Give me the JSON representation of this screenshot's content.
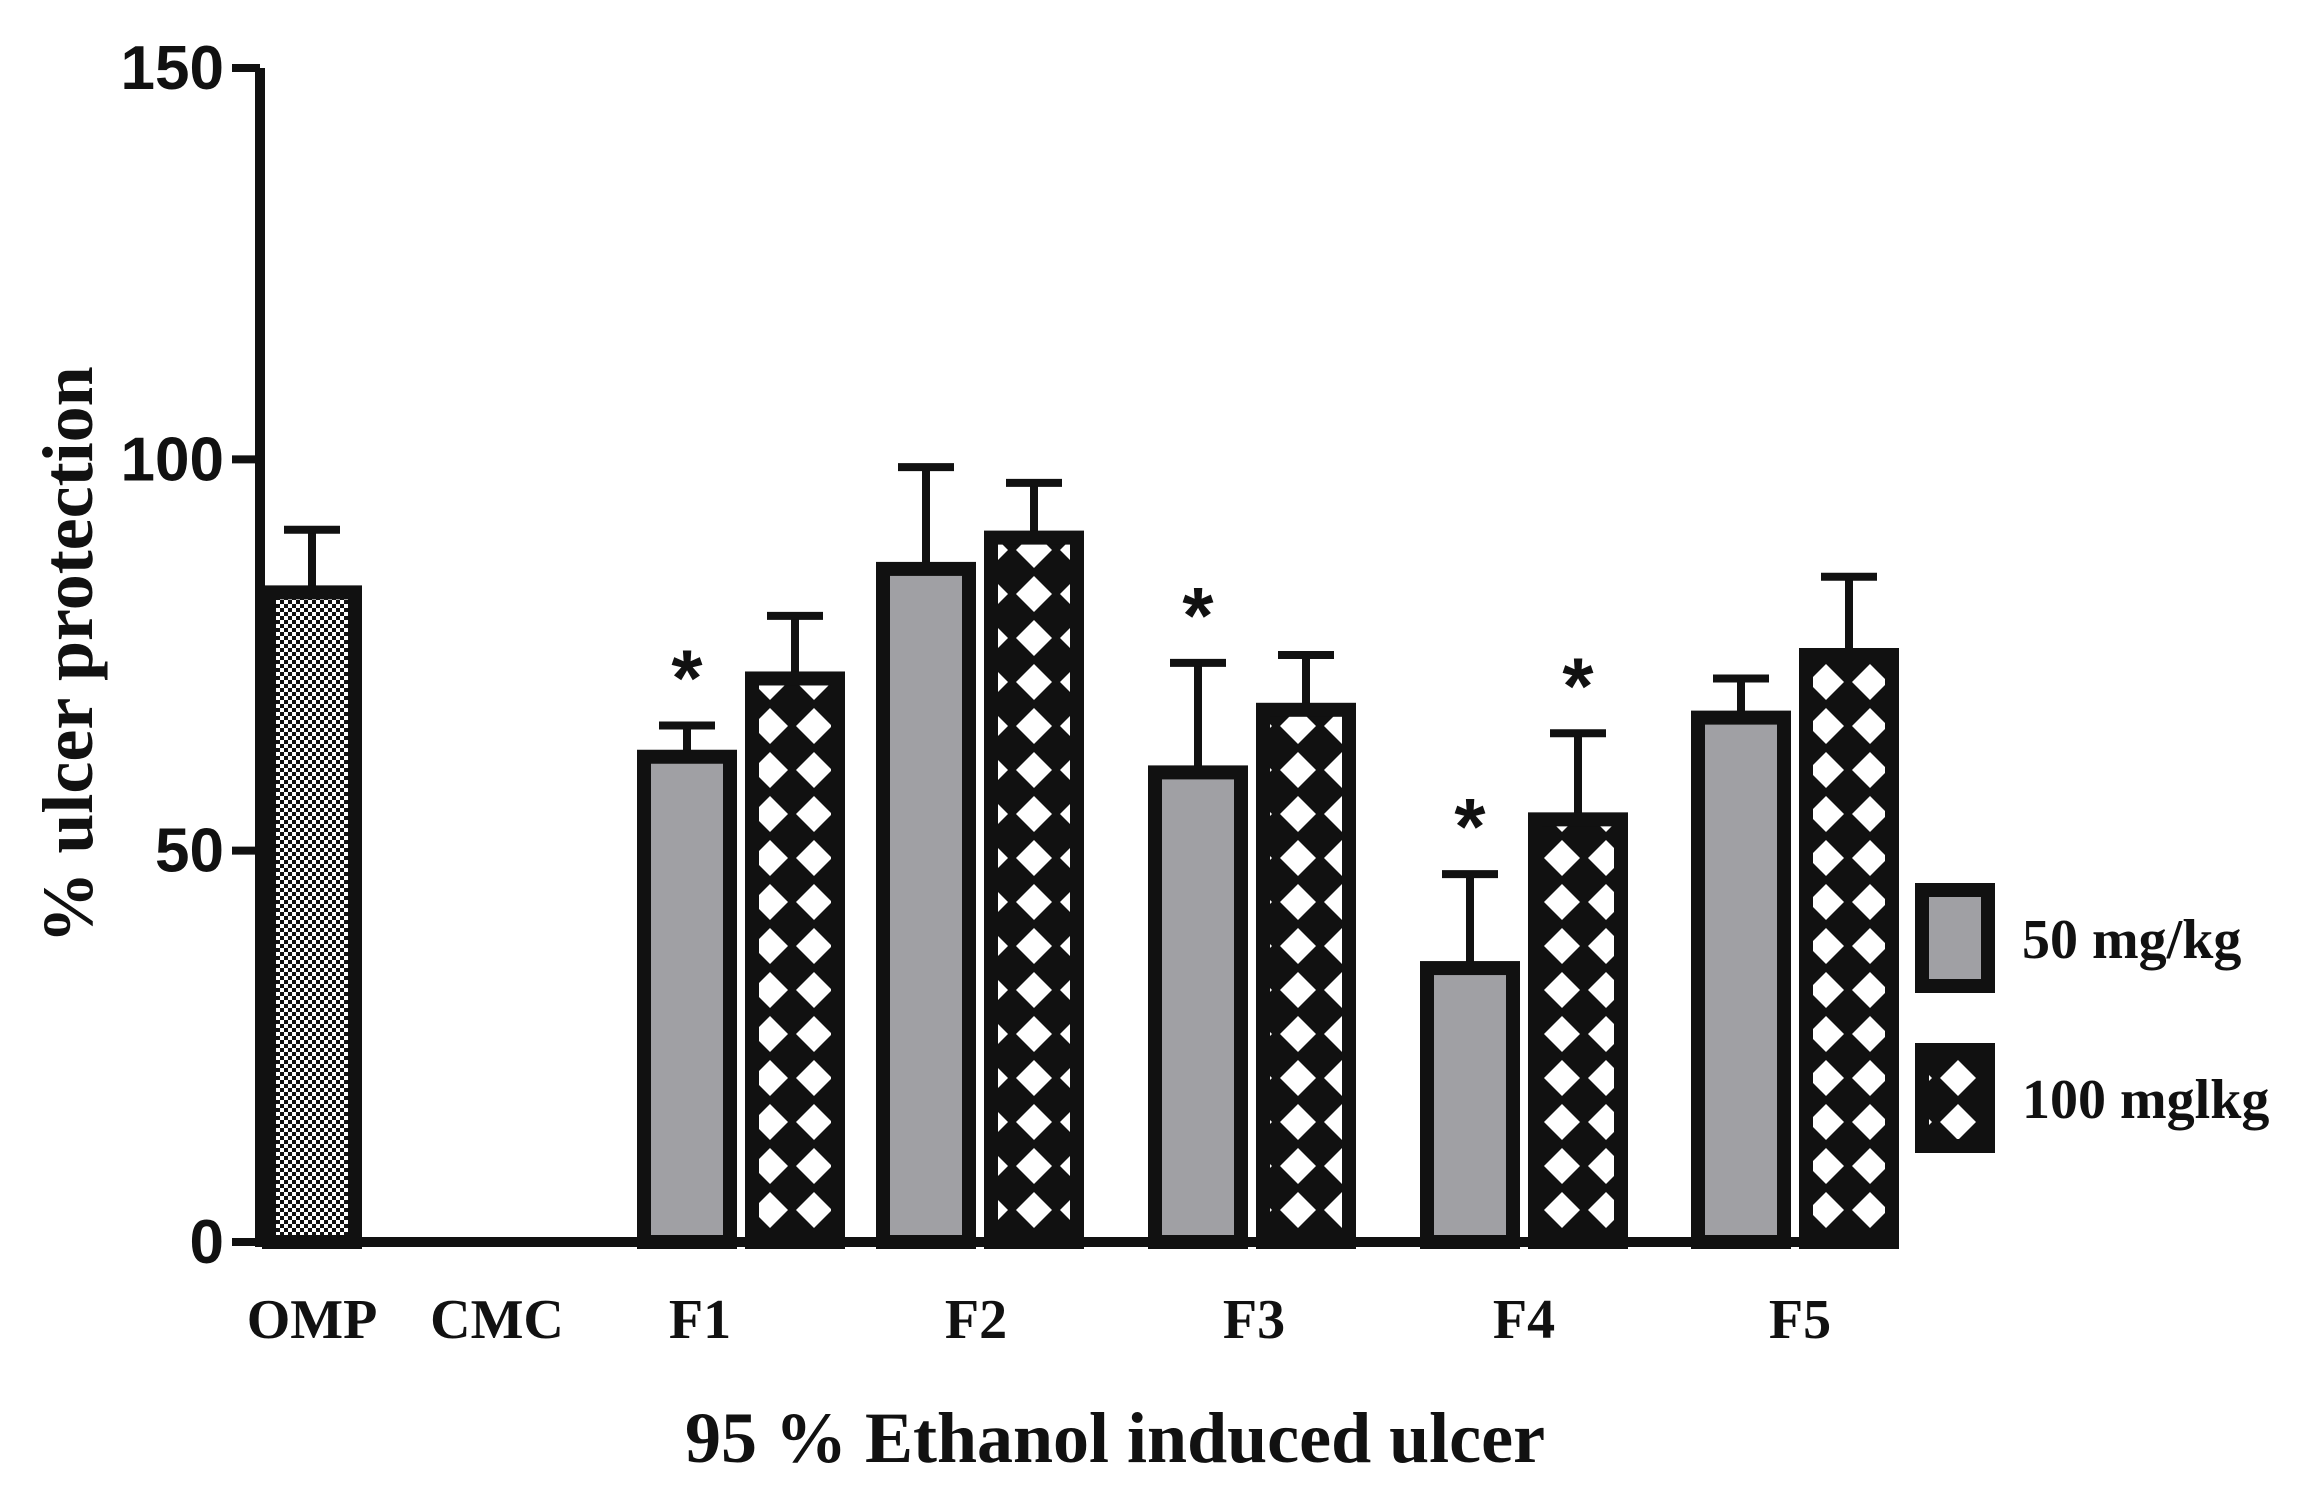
{
  "chart_data": {
    "type": "bar",
    "xlabel": "95 % Ethanol induced ulcer",
    "ylabel": "% ulcer protection",
    "ylim": [
      0,
      150
    ],
    "yticks": [
      "0",
      "50",
      "100",
      "150"
    ],
    "categories": [
      "OMP",
      "CMC",
      "F1",
      "F2",
      "F3",
      "F4",
      "F5"
    ],
    "single_series": {
      "category": "OMP",
      "value": 83,
      "error": 8,
      "pattern": "dots"
    },
    "series": [
      {
        "name": "50 mg/kg",
        "pattern": "solid-gray",
        "color": "#a0a0a4",
        "values": [
          null,
          null,
          62,
          86,
          60,
          35,
          67
        ],
        "errors": [
          null,
          null,
          4,
          13,
          14,
          12,
          5
        ],
        "significance": [
          "",
          "",
          "*",
          "",
          "*",
          "*",
          ""
        ]
      },
      {
        "name": "100 mglkg",
        "pattern": "checker",
        "color": "#ffffff",
        "values": [
          null,
          null,
          72,
          90,
          68,
          54,
          75
        ],
        "errors": [
          null,
          null,
          8,
          7,
          7,
          11,
          10
        ],
        "significance": [
          "",
          "",
          "",
          "",
          "",
          "*",
          ""
        ]
      }
    ],
    "legend_position": "right",
    "grid": false
  }
}
